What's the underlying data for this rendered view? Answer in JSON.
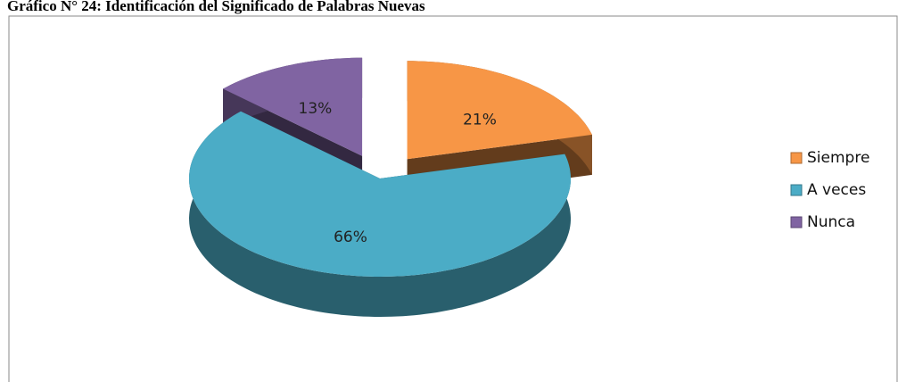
{
  "chart_data": {
    "type": "pie",
    "title": "Gráfico N° 24: Identificación del Significado de Palabras Nuevas",
    "categories": [
      "Siempre",
      "A veces",
      "Nunca"
    ],
    "values": [
      21,
      66,
      13
    ],
    "value_labels": [
      "21%",
      "66%",
      "13%"
    ],
    "colors": [
      "#f79646",
      "#4bacc6",
      "#8064a2"
    ],
    "legend": "right"
  }
}
